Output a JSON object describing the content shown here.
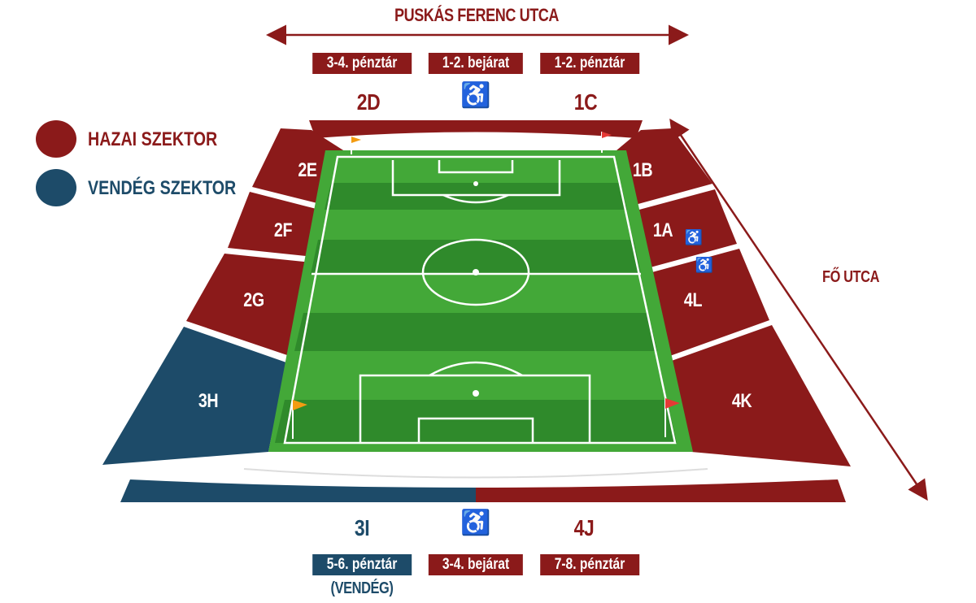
{
  "colors": {
    "home": "#8b1a1a",
    "away": "#1d4b69",
    "pitch_light": "#43a838",
    "pitch_dark": "#2f8a2b"
  },
  "streets": {
    "top": "PUSKÁS FERENC UTCA",
    "right": "FŐ UTCA"
  },
  "legend": [
    {
      "label": "HAZAI SZEKTOR",
      "color": "#8b1a1a"
    },
    {
      "label": "VENDÉG SZEKTOR",
      "color": "#1d4b69"
    }
  ],
  "top_tags": [
    "3-4. pénztár",
    "1-2. bejárat",
    "1-2. pénztár"
  ],
  "bottom_tags": [
    "5-6. pénztár",
    "3-4. bejárat",
    "7-8. pénztár"
  ],
  "bottom_note": "(VENDÉG)",
  "sectors": {
    "2D": "2D",
    "1C": "1C",
    "2E": "2E",
    "2F": "2F",
    "2G": "2G",
    "3H": "3H",
    "1B": "1B",
    "1A": "1A",
    "4L": "4L",
    "4K": "4K",
    "3I": "3I",
    "4J": "4J"
  },
  "wheelchair_icon": "♿"
}
